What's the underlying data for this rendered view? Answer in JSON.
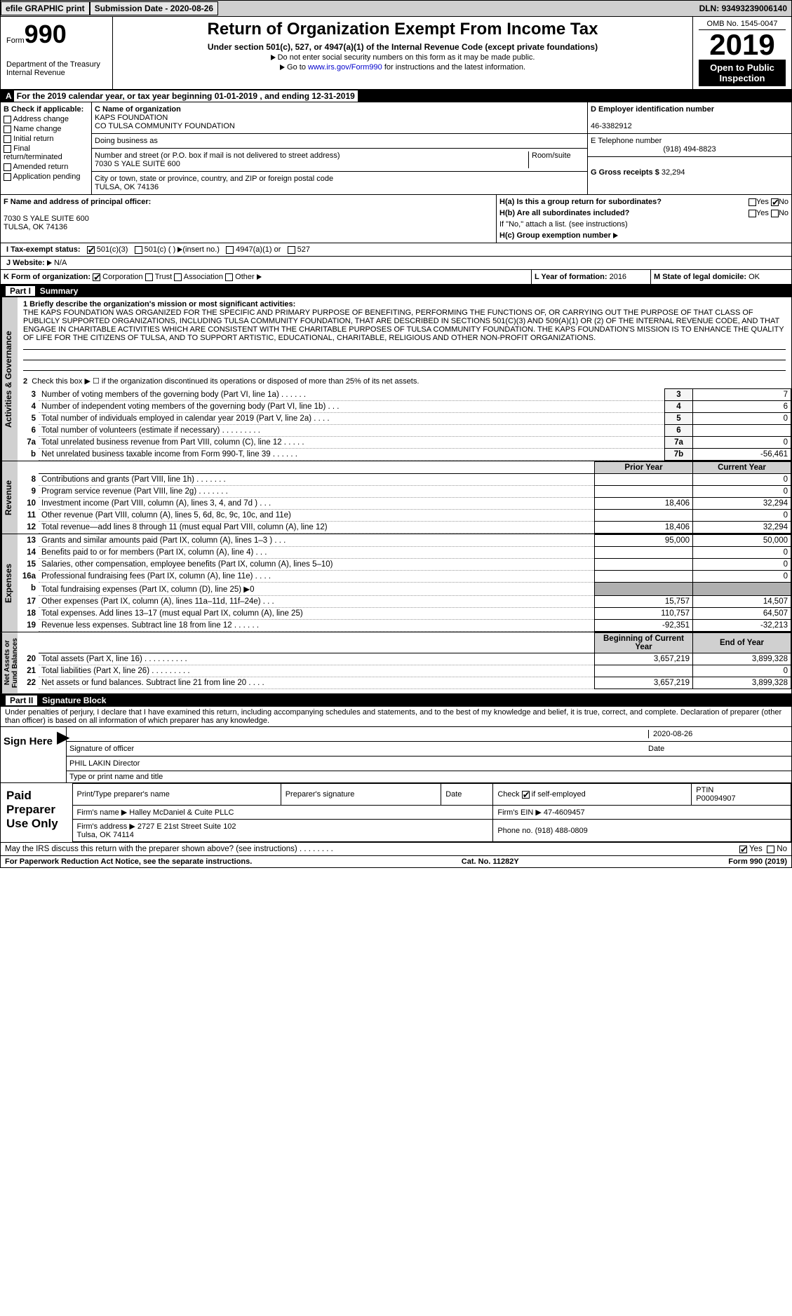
{
  "topbar": {
    "efile": "efile GRAPHIC print",
    "submission_label": "Submission Date - ",
    "submission_date": "2020-08-26",
    "dln_label": "DLN: ",
    "dln": "93493239006140"
  },
  "header": {
    "form_word": "Form",
    "form_num": "990",
    "dept": "Department of the Treasury\nInternal Revenue",
    "title": "Return of Organization Exempt From Income Tax",
    "subtitle": "Under section 501(c), 527, or 4947(a)(1) of the Internal Revenue Code (except private foundations)",
    "note1": "Do not enter social security numbers on this form as it may be made public.",
    "note2_pre": "Go to ",
    "note2_link": "www.irs.gov/Form990",
    "note2_post": " for instructions and the latest information.",
    "omb": "OMB No. 1545-0047",
    "year": "2019",
    "open": "Open to Public Inspection"
  },
  "period": "For the 2019 calendar year, or tax year beginning 01-01-2019    , and ending 12-31-2019",
  "B": {
    "label": "B Check if applicable:",
    "items": [
      "Address change",
      "Name change",
      "Initial return",
      "Final return/terminated",
      "Amended return",
      "Application pending"
    ]
  },
  "C": {
    "name_lbl": "C Name of organization",
    "name1": "KAPS FOUNDATION",
    "name2": "CO TULSA COMMUNITY FOUNDATION",
    "dba_lbl": "Doing business as",
    "addr_lbl": "Number and street (or P.O. box if mail is not delivered to street address)",
    "room_lbl": "Room/suite",
    "addr": "7030 S YALE SUITE 600",
    "city_lbl": "City or town, state or province, country, and ZIP or foreign postal code",
    "city": "TULSA, OK  74136"
  },
  "D": {
    "lbl": "D Employer identification number",
    "val": "46-3382912"
  },
  "E": {
    "lbl": "E Telephone number",
    "val": "(918) 494-8823"
  },
  "G": {
    "lbl": "G Gross receipts $",
    "val": "32,294"
  },
  "F": {
    "lbl": "F  Name and address of principal officer:",
    "l1": "7030 S YALE SUITE 600",
    "l2": "TULSA, OK  74136"
  },
  "H": {
    "a": "H(a)  Is this a group return for subordinates?",
    "b": "H(b)  Are all subordinates included?",
    "bnote": "If \"No,\" attach a list. (see instructions)",
    "c": "H(c)  Group exemption number",
    "yes": "Yes",
    "no": "No"
  },
  "I": {
    "lbl": "I   Tax-exempt status:",
    "o1": "501(c)(3)",
    "o2": "501(c) (  )",
    "ins": "(insert no.)",
    "o3": "4947(a)(1) or",
    "o4": "527"
  },
  "J": {
    "lbl": "J   Website:",
    "val": "N/A"
  },
  "K": {
    "lbl": "K Form of organization:",
    "o1": "Corporation",
    "o2": "Trust",
    "o3": "Association",
    "o4": "Other"
  },
  "L": {
    "lbl": "L Year of formation:",
    "val": "2016"
  },
  "M": {
    "lbl": "M State of legal domicile:",
    "val": "OK"
  },
  "part1": {
    "hdr": "Part I",
    "title": "Summary"
  },
  "mission_lbl": "1   Briefly describe the organization's mission or most significant activities:",
  "mission": "THE KAPS FOUNDATION WAS ORGANIZED FOR THE SPECIFIC AND PRIMARY PURPOSE OF BENEFITING, PERFORMING THE FUNCTIONS OF, OR CARRYING OUT THE PURPOSE OF THAT CLASS OF PUBLICLY SUPPORTED ORGANIZATIONS, INCLUDING TULSA COMMUNITY FOUNDATION, THAT ARE DESCRIBED IN SECTIONS 501(C)(3) AND 509(A)(1) OR (2) OF THE INTERNAL REVENUE CODE, AND THAT ENGAGE IN CHARITABLE ACTIVITIES WHICH ARE CONSISTENT WITH THE CHARITABLE PURPOSES OF TULSA COMMUNITY FOUNDATION. THE KAPS FOUNDATION'S MISSION IS TO ENHANCE THE QUALITY OF LIFE FOR THE CITIZENS OF TULSA, AND TO SUPPORT ARTISTIC, EDUCATIONAL, CHARITABLE, RELIGIOUS AND OTHER NON-PROFIT ORGANIZATIONS.",
  "gov": {
    "l2": "Check this box ▶ ☐ if the organization discontinued its operations or disposed of more than 25% of its net assets.",
    "rows": [
      {
        "n": "3",
        "d": "Number of voting members of the governing body (Part VI, line 1a)  .    .    .    .    .    .",
        "k": "3",
        "v": "7"
      },
      {
        "n": "4",
        "d": "Number of independent voting members of the governing body (Part VI, line 1b)  .    .    .",
        "k": "4",
        "v": "6"
      },
      {
        "n": "5",
        "d": "Total number of individuals employed in calendar year 2019 (Part V, line 2a)  .    .    .    .",
        "k": "5",
        "v": "0"
      },
      {
        "n": "6",
        "d": "Total number of volunteers (estimate if necessary)   .    .    .    .    .    .    .    .    .",
        "k": "6",
        "v": ""
      },
      {
        "n": "7a",
        "d": "Total unrelated business revenue from Part VIII, column (C), line 12  .    .    .    .    .",
        "k": "7a",
        "v": "0"
      },
      {
        "n": "b",
        "d": "Net unrelated business taxable income from Form 990-T, line 39   .    .    .    .    .    .",
        "k": "7b",
        "v": "-56,461"
      }
    ]
  },
  "rev_hdr": {
    "p": "Prior Year",
    "c": "Current Year"
  },
  "revenue": [
    {
      "n": "8",
      "d": "Contributions and grants (Part VIII, line 1h)   .    .    .    .    .    .    .",
      "p": "",
      "c": "0"
    },
    {
      "n": "9",
      "d": "Program service revenue (Part VIII, line 2g)   .    .    .    .    .    .    .",
      "p": "",
      "c": "0"
    },
    {
      "n": "10",
      "d": "Investment income (Part VIII, column (A), lines 3, 4, and 7d )   .    .    .",
      "p": "18,406",
      "c": "32,294"
    },
    {
      "n": "11",
      "d": "Other revenue (Part VIII, column (A), lines 5, 6d, 8c, 9c, 10c, and 11e)",
      "p": "",
      "c": "0"
    },
    {
      "n": "12",
      "d": "Total revenue—add lines 8 through 11 (must equal Part VIII, column (A), line 12)",
      "p": "18,406",
      "c": "32,294"
    }
  ],
  "expenses": [
    {
      "n": "13",
      "d": "Grants and similar amounts paid (Part IX, column (A), lines 1–3 )   .    .    .",
      "p": "95,000",
      "c": "50,000"
    },
    {
      "n": "14",
      "d": "Benefits paid to or for members (Part IX, column (A), line 4)   .    .    .",
      "p": "",
      "c": "0"
    },
    {
      "n": "15",
      "d": "Salaries, other compensation, employee benefits (Part IX, column (A), lines 5–10)",
      "p": "",
      "c": "0"
    },
    {
      "n": "16a",
      "d": "Professional fundraising fees (Part IX, column (A), line 11e)   .    .    .    .",
      "p": "",
      "c": "0"
    },
    {
      "n": "b",
      "d": "Total fundraising expenses (Part IX, column (D), line 25) ▶0",
      "p": "grey",
      "c": "grey"
    },
    {
      "n": "17",
      "d": "Other expenses (Part IX, column (A), lines 11a–11d, 11f–24e)   .    .    .",
      "p": "15,757",
      "c": "14,507"
    },
    {
      "n": "18",
      "d": "Total expenses. Add lines 13–17 (must equal Part IX, column (A), line 25)",
      "p": "110,757",
      "c": "64,507"
    },
    {
      "n": "19",
      "d": "Revenue less expenses. Subtract line 18 from line 12   .    .    .    .    .    .",
      "p": "-92,351",
      "c": "-32,213"
    }
  ],
  "net_hdr": {
    "p": "Beginning of Current Year",
    "c": "End of Year"
  },
  "net": [
    {
      "n": "20",
      "d": "Total assets (Part X, line 16)   .    .    .    .    .    .    .    .    .    .",
      "p": "3,657,219",
      "c": "3,899,328"
    },
    {
      "n": "21",
      "d": "Total liabilities (Part X, line 26)   .    .    .    .    .    .    .    .    .",
      "p": "",
      "c": "0"
    },
    {
      "n": "22",
      "d": "Net assets or fund balances. Subtract line 21 from line 20   .    .    .    .",
      "p": "3,657,219",
      "c": "3,899,328"
    }
  ],
  "part2": {
    "hdr": "Part II",
    "title": "Signature Block"
  },
  "perjury": "Under penalties of perjury, I declare that I have examined this return, including accompanying schedules and statements, and to the best of my knowledge and belief, it is true, correct, and complete. Declaration of preparer (other than officer) is based on all information of which preparer has any knowledge.",
  "sign": {
    "here": "Sign Here",
    "date": "2020-08-26",
    "sig_lbl": "Signature of officer",
    "date_lbl": "Date",
    "name": "PHIL LAKIN  Director",
    "name_lbl": "Type or print name and title"
  },
  "prep": {
    "lbl": "Paid Preparer Use Only",
    "h1": "Print/Type preparer's name",
    "h2": "Preparer's signature",
    "h3": "Date",
    "h4": "Check",
    "h4b": "if self-employed",
    "h5": "PTIN",
    "ptin": "P00094907",
    "firm_lbl": "Firm's name  ▶",
    "firm": "Halley McDaniel & Cuite PLLC",
    "ein_lbl": "Firm's EIN ▶",
    "ein": "47-4609457",
    "addr_lbl": "Firm's address ▶",
    "addr": "2727 E 21st Street Suite 102\nTulsa, OK  74114",
    "phone_lbl": "Phone no.",
    "phone": "(918) 488-0809"
  },
  "may": "May the IRS discuss this return with the preparer shown above? (see instructions)   .    .    .    .    .    .    .    .",
  "foot": {
    "l": "For Paperwork Reduction Act Notice, see the separate instructions.",
    "c": "Cat. No. 11282Y",
    "r": "Form 990 (2019)"
  },
  "sidelabels": {
    "gov": "Activities & Governance",
    "rev": "Revenue",
    "exp": "Expenses",
    "net": "Net Assets or\nFund Balances"
  }
}
